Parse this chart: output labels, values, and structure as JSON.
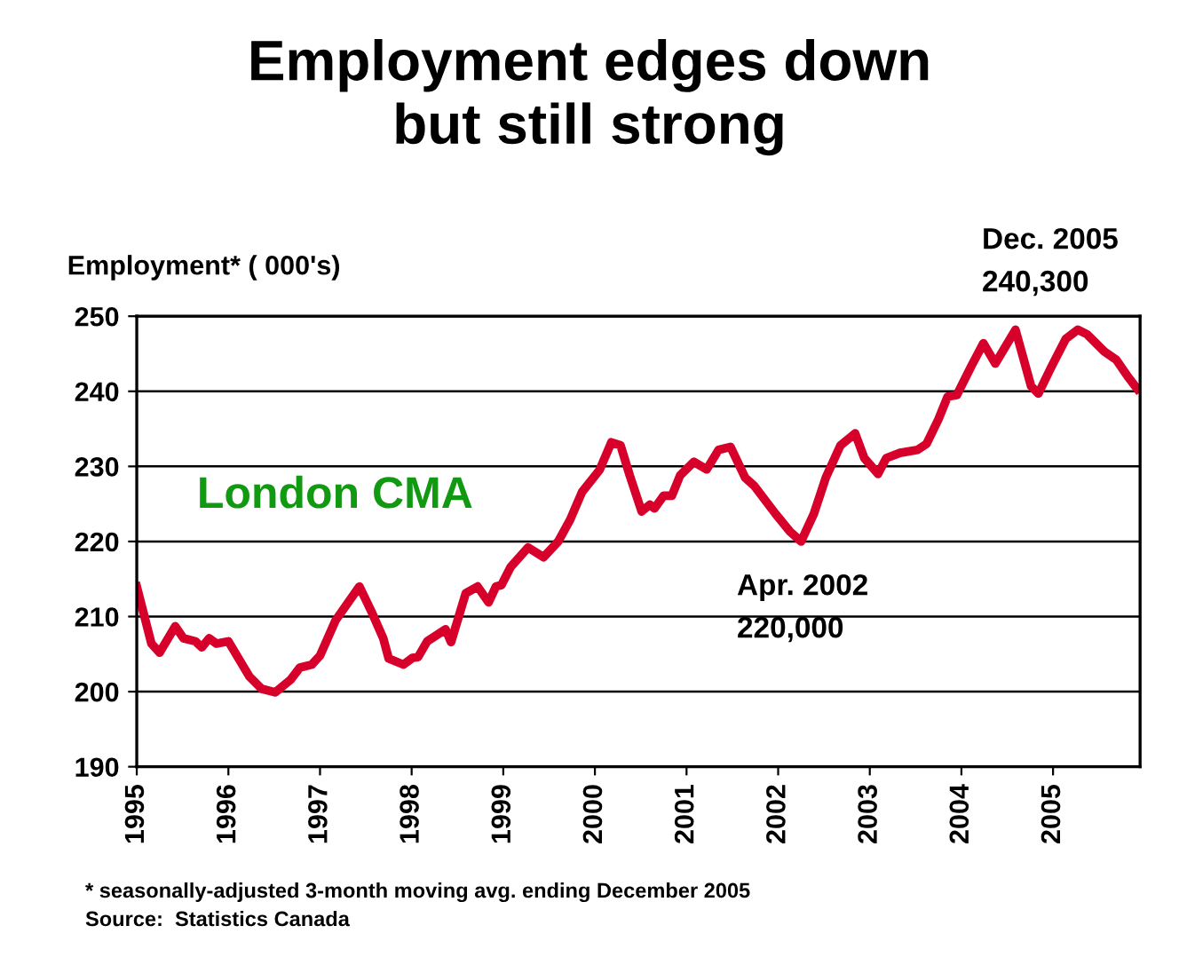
{
  "chart_data": {
    "type": "line",
    "title": "Employment edges down\nbut still strong",
    "ylabel": "Employment* ( 000's)",
    "x": [
      1995.0,
      1995.16,
      1995.25,
      1995.42,
      1995.51,
      1995.64,
      1995.71,
      1995.79,
      1995.87,
      1996.0,
      1996.23,
      1996.36,
      1996.51,
      1996.68,
      1996.78,
      1996.91,
      1997.0,
      1997.17,
      1997.43,
      1997.56,
      1997.69,
      1997.75,
      1997.91,
      1998.01,
      1998.07,
      1998.17,
      1998.37,
      1998.43,
      1998.59,
      1998.72,
      1998.84,
      1998.92,
      1998.98,
      1999.08,
      1999.27,
      1999.44,
      1999.6,
      1999.73,
      1999.86,
      2000.05,
      2000.18,
      2000.28,
      2000.38,
      2000.51,
      2000.6,
      2000.65,
      2000.75,
      2000.84,
      2000.93,
      2001.08,
      2001.22,
      2001.35,
      2001.48,
      2001.64,
      2001.74,
      2001.97,
      2002.13,
      2002.25,
      2002.39,
      2002.52,
      2002.68,
      2002.84,
      2002.94,
      2003.09,
      2003.18,
      2003.33,
      2003.52,
      2003.62,
      2003.75,
      2003.85,
      2003.95,
      2004.11,
      2004.24,
      2004.37,
      2004.59,
      2004.76,
      2004.84,
      2004.98,
      2005.14,
      2005.27,
      2005.37,
      2005.56,
      2005.69,
      2005.82,
      2005.92
    ],
    "series": [
      {
        "name": "London CMA",
        "color": "#d6002a",
        "values": [
          214.0,
          206.4,
          205.2,
          208.7,
          207.1,
          206.7,
          205.9,
          207.1,
          206.4,
          206.7,
          202.0,
          200.4,
          199.9,
          201.6,
          203.2,
          203.6,
          204.8,
          209.5,
          214.0,
          210.7,
          207.1,
          204.4,
          203.6,
          204.5,
          204.6,
          206.7,
          208.3,
          206.6,
          213.1,
          214.0,
          211.9,
          214.0,
          214.2,
          216.6,
          219.2,
          217.9,
          220.0,
          222.9,
          226.6,
          229.5,
          233.2,
          232.8,
          228.8,
          224.0,
          224.9,
          224.4,
          226.1,
          226.1,
          228.8,
          230.6,
          229.6,
          232.2,
          232.6,
          228.5,
          227.4,
          223.7,
          221.3,
          220.0,
          223.7,
          228.5,
          232.8,
          234.4,
          231.1,
          229.0,
          231.1,
          231.8,
          232.2,
          233.0,
          236.3,
          239.3,
          239.5,
          243.4,
          246.4,
          243.7,
          248.2,
          240.7,
          239.7,
          243.2,
          247.0,
          248.2,
          247.6,
          245.3,
          244.2,
          241.9,
          240.3
        ]
      }
    ],
    "xlim": [
      1995.0,
      2005.95
    ],
    "xticks": [
      1995,
      1996,
      1997,
      1998,
      1999,
      2000,
      2001,
      2002,
      2003,
      2004,
      2005
    ],
    "ylim": [
      190,
      250
    ],
    "yticks": [
      190,
      200,
      210,
      220,
      230,
      240,
      250
    ],
    "grid": "y",
    "marker": "none",
    "line_style": "solid",
    "legend": false,
    "annotations": [
      "Dec. 2005\n240,300",
      "Apr. 2002\n220,000",
      "* seasonally-adjusted 3-month moving avg. ending December 2005",
      "Source:  Statistics Canada"
    ]
  }
}
